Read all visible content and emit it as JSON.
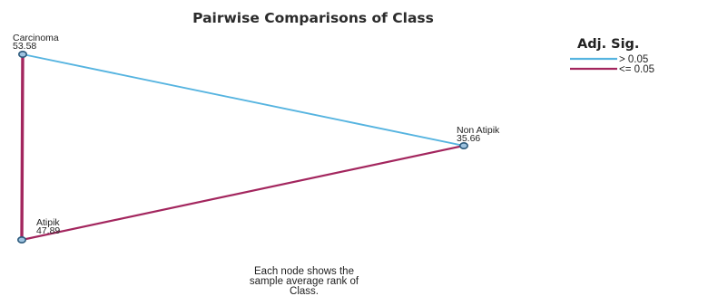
{
  "title": "Pairwise Comparisons of Class",
  "nodes": [
    {
      "id": "carcinoma",
      "name": "Carcinoma",
      "rank": "53.58"
    },
    {
      "id": "non_atipik",
      "name": "Non Atipik",
      "rank": "35.66"
    },
    {
      "id": "atipik",
      "name": "Atipik",
      "rank": "47.89"
    }
  ],
  "edges": [
    {
      "from": "carcinoma",
      "to": "non_atipik",
      "significance": "gt"
    },
    {
      "from": "atipik",
      "to": "non_atipik",
      "significance": "le"
    },
    {
      "from": "carcinoma",
      "to": "atipik",
      "significance": "le"
    }
  ],
  "legend": {
    "title": "Adj. Sig.",
    "items": [
      {
        "key": "gt",
        "label": "> 0.05",
        "color": "#56b4e0"
      },
      {
        "key": "le",
        "label": "<= 0.05",
        "color": "#a3265e"
      }
    ]
  },
  "caption": [
    "Each node shows the",
    "sample average rank of",
    "Class."
  ],
  "colors": {
    "node_fill": "#9ec3e0",
    "node_stroke": "#2c5a7c"
  }
}
